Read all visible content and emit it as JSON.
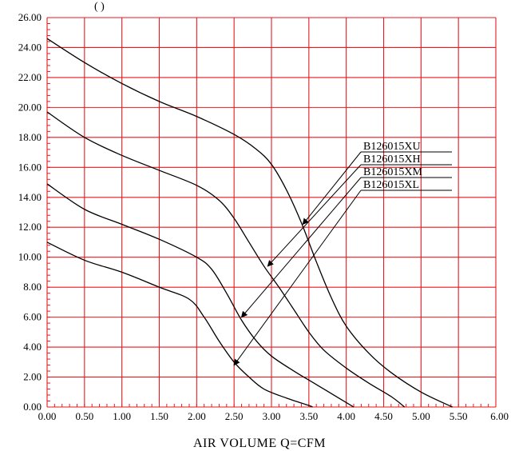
{
  "chart_data": {
    "type": "line",
    "title": "",
    "xlabel": "AIR    VOLUME    Q=CFM",
    "ylabel_partial": "(        )",
    "xlim": [
      0,
      6
    ],
    "ylim": [
      0,
      26
    ],
    "x_ticks": [
      "0.00",
      "0.50",
      "1.00",
      "1.50",
      "2.00",
      "2.50",
      "3.00",
      "3.50",
      "4.00",
      "4.50",
      "5.00",
      "5.50",
      "6.00"
    ],
    "y_ticks": [
      "0.00",
      "2.00",
      "4.00",
      "6.00",
      "8.00",
      "10.00",
      "12.00",
      "14.00",
      "16.00",
      "18.00",
      "20.00",
      "22.00",
      "24.00",
      "26.00"
    ],
    "grid": true,
    "grid_color": "#e8191f",
    "line_color": "#000000",
    "series": [
      {
        "name": "B126015XU",
        "points": [
          [
            0,
            24.6
          ],
          [
            0.5,
            23.0
          ],
          [
            1.0,
            21.6
          ],
          [
            1.5,
            20.4
          ],
          [
            2.0,
            19.4
          ],
          [
            2.5,
            18.2
          ],
          [
            2.8,
            17.2
          ],
          [
            3.0,
            16.2
          ],
          [
            3.2,
            14.5
          ],
          [
            3.4,
            12.3
          ],
          [
            3.6,
            9.7
          ],
          [
            3.8,
            7.3
          ],
          [
            4.0,
            5.4
          ],
          [
            4.3,
            3.6
          ],
          [
            4.6,
            2.3
          ],
          [
            5.0,
            1.0
          ],
          [
            5.42,
            0
          ]
        ]
      },
      {
        "name": "B126015XH",
        "points": [
          [
            0,
            19.7
          ],
          [
            0.5,
            18.0
          ],
          [
            1.0,
            16.8
          ],
          [
            1.5,
            15.8
          ],
          [
            2.0,
            14.8
          ],
          [
            2.3,
            13.8
          ],
          [
            2.5,
            12.6
          ],
          [
            2.7,
            11.0
          ],
          [
            2.9,
            9.4
          ],
          [
            3.1,
            8.0
          ],
          [
            3.3,
            6.5
          ],
          [
            3.5,
            5.0
          ],
          [
            3.7,
            3.8
          ],
          [
            4.0,
            2.6
          ],
          [
            4.3,
            1.6
          ],
          [
            4.6,
            0.7
          ],
          [
            4.78,
            0
          ]
        ]
      },
      {
        "name": "B126015XM",
        "points": [
          [
            0,
            14.9
          ],
          [
            0.5,
            13.2
          ],
          [
            1.0,
            12.2
          ],
          [
            1.5,
            11.2
          ],
          [
            2.0,
            10.0
          ],
          [
            2.2,
            9.2
          ],
          [
            2.4,
            7.6
          ],
          [
            2.6,
            5.8
          ],
          [
            2.8,
            4.4
          ],
          [
            3.0,
            3.4
          ],
          [
            3.3,
            2.4
          ],
          [
            3.6,
            1.5
          ],
          [
            3.9,
            0.6
          ],
          [
            4.1,
            0
          ]
        ]
      },
      {
        "name": "B126015XL",
        "points": [
          [
            0,
            11.0
          ],
          [
            0.5,
            9.8
          ],
          [
            1.0,
            9.0
          ],
          [
            1.5,
            8.0
          ],
          [
            1.9,
            7.2
          ],
          [
            2.1,
            6.0
          ],
          [
            2.3,
            4.4
          ],
          [
            2.5,
            3.0
          ],
          [
            2.7,
            2.0
          ],
          [
            2.9,
            1.2
          ],
          [
            3.2,
            0.6
          ],
          [
            3.5,
            0.1
          ],
          [
            3.55,
            0
          ]
        ]
      }
    ],
    "annotations": [
      {
        "label": "B126015XU",
        "arrow_to": [
          3.42,
          12.2
        ]
      },
      {
        "label": "B126015XH",
        "arrow_to": [
          2.95,
          9.4
        ]
      },
      {
        "label": "B126015XM",
        "arrow_to": [
          2.6,
          6.0
        ]
      },
      {
        "label": "B126015XL",
        "arrow_to": [
          2.5,
          2.8
        ]
      }
    ]
  }
}
